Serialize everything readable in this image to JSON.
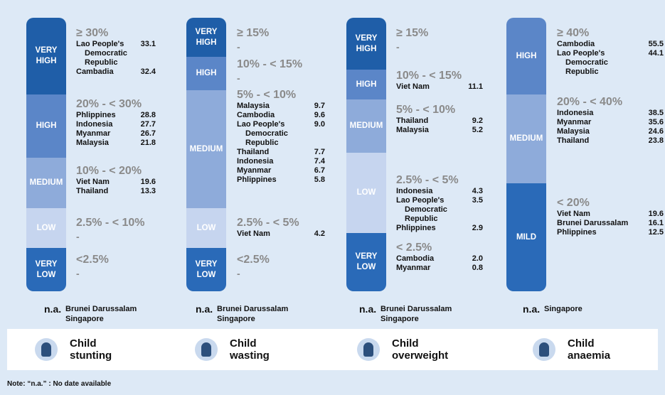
{
  "columns": [
    {
      "segments": [
        "VERY HIGH",
        "HIGH",
        "MEDIUM",
        "LOW",
        "VERY LOW"
      ],
      "groups": [
        {
          "range": "≥ 30%",
          "entries": [
            {
              "country": "Lao People's Democratic Republic",
              "value": "33.1"
            },
            {
              "country": "Cambadia",
              "value": "32.4"
            }
          ]
        },
        {
          "range": "20% - < 30%",
          "entries": [
            {
              "country": "Phlippines",
              "value": "28.8"
            },
            {
              "country": "Indonesia",
              "value": "27.7"
            },
            {
              "country": "Myanmar",
              "value": "26.7"
            },
            {
              "country": "Malaysia",
              "value": "21.8"
            }
          ]
        },
        {
          "range": "10% - < 20%",
          "entries": [
            {
              "country": "Viet Nam",
              "value": "19.6"
            },
            {
              "country": "Thailand",
              "value": "13.3"
            }
          ]
        },
        {
          "range": "2.5% - < 10%",
          "empty": "-"
        },
        {
          "range": "<2.5%",
          "empty": "-"
        }
      ],
      "na": {
        "label": "n.a.",
        "countries": [
          "Brunei Darussalam",
          "Singapore"
        ]
      },
      "indicator": "Child stunting"
    },
    {
      "segments": [
        "VERY HIGH",
        "HIGH",
        "MEDIUM",
        "LOW",
        "VERY LOW"
      ],
      "groups": [
        {
          "range": "≥ 15%",
          "empty": "-"
        },
        {
          "range": "10% - < 15%",
          "empty": "-"
        },
        {
          "range": "5% - < 10%",
          "entries": [
            {
              "country": "Malaysia",
              "value": "9.7"
            },
            {
              "country": "Cambodia",
              "value": "9.6"
            },
            {
              "country": "Lao People's Democratic Republic",
              "value": "9.0"
            },
            {
              "country": "Thailand",
              "value": "7.7"
            },
            {
              "country": "Indonesia",
              "value": "7.4"
            },
            {
              "country": "Myanmar",
              "value": "6.7"
            },
            {
              "country": "Phlippines",
              "value": "5.8"
            }
          ]
        },
        {
          "range": "2.5% - < 5%",
          "entries": [
            {
              "country": "Viet Nam",
              "value": "4.2"
            }
          ]
        },
        {
          "range": "<2.5%",
          "empty": "-"
        }
      ],
      "na": {
        "label": "n.a.",
        "countries": [
          "Brunei Darussalam",
          "Singapore"
        ]
      },
      "indicator": "Child wasting"
    },
    {
      "segments": [
        "VERY HIGH",
        "HIGH",
        "MEDIUM",
        "LOW",
        "VERY LOW"
      ],
      "groups": [
        {
          "range": "≥ 15%",
          "empty": "-"
        },
        {
          "range": "10% - < 15%",
          "entries": [
            {
              "country": "Viet Nam",
              "value": "11.1"
            }
          ]
        },
        {
          "range": "5% - < 10%",
          "entries": [
            {
              "country": "Thailand",
              "value": "9.2"
            },
            {
              "country": "Malaysia",
              "value": "5.2"
            }
          ]
        },
        {
          "range": "2.5% - < 5%",
          "entries": [
            {
              "country": "Indonesia",
              "value": "4.3"
            },
            {
              "country": "Lao People's Democratic Republic",
              "value": "3.5"
            },
            {
              "country": "Phlippines",
              "value": "2.9"
            }
          ]
        },
        {
          "range": "< 2.5%",
          "entries": [
            {
              "country": "Cambodia",
              "value": "2.0"
            },
            {
              "country": "Myanmar",
              "value": "0.8"
            }
          ]
        }
      ],
      "na": {
        "label": "n.a.",
        "countries": [
          "Brunei Darussalam",
          "Singapore"
        ]
      },
      "indicator": "Child overweight"
    },
    {
      "segments": [
        "HIGH",
        "MEDIUM",
        "MILD"
      ],
      "groups": [
        {
          "range": "≥ 40%",
          "entries": [
            {
              "country": "Cambodia",
              "value": "55.5"
            },
            {
              "country": "Lao People's Democratic Republic",
              "value": "44.1"
            }
          ]
        },
        {
          "range": "20% - < 40%",
          "entries": [
            {
              "country": "Indonesia",
              "value": "38.5"
            },
            {
              "country": "Myanmar",
              "value": "35.6"
            },
            {
              "country": "Malaysia",
              "value": "24.6"
            },
            {
              "country": "Thailand",
              "value": "23.8"
            }
          ]
        },
        {
          "range": "< 20%",
          "entries": [
            {
              "country": "Viet Nam",
              "value": "19.6"
            },
            {
              "country": "Brunei Darussalam",
              "value": "16.1"
            },
            {
              "country": "Phlippines",
              "value": "12.5"
            }
          ]
        }
      ],
      "na": {
        "label": "n.a.",
        "countries": [
          "Singapore"
        ]
      },
      "indicator": "Child anaemia"
    }
  ],
  "note": "Note: “n.a.” : No date available"
}
